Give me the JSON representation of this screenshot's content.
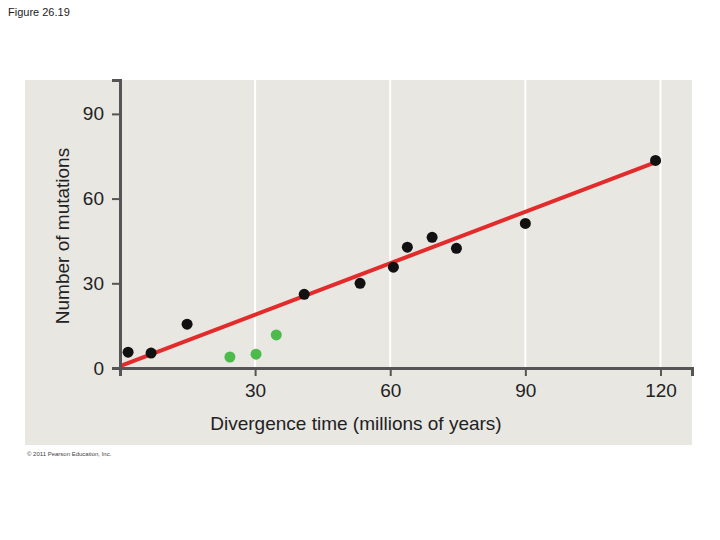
{
  "chart_data": {
    "type": "scatter",
    "title": "Figure 26.19",
    "x_label": "Divergence time (millions of years)",
    "y_label": "Number of mutations",
    "annotations": [
      "© 2011 Pearson Education, Inc."
    ],
    "xlim": [
      0,
      127
    ],
    "ylim": [
      0,
      102
    ],
    "xticks": [
      30,
      60,
      90,
      120
    ],
    "yticks": [
      0,
      30,
      60,
      90
    ],
    "grid": "x",
    "series": [
      {
        "type": "scatter",
        "color": "#111111",
        "marker": "circle",
        "x": [
          1.8,
          6.9,
          14.9,
          40.9,
          53.3,
          60.7,
          63.8,
          69.3,
          74.7,
          90,
          118.9
        ],
        "values": [
          5.6,
          5.3,
          15.5,
          26.1,
          30,
          35.7,
          42.8,
          46.3,
          42.4,
          51.2,
          73.5
        ]
      },
      {
        "type": "scatter",
        "color": "#4cbb4c",
        "marker": "circle",
        "x": [
          24.4,
          30.2,
          34.7
        ],
        "values": [
          3.9,
          4.9,
          11.7
        ]
      },
      {
        "type": "line",
        "color": "#e32b2b",
        "line_style": "solid",
        "x": [
          0,
          120
        ],
        "values": [
          0.7,
          73.5
        ]
      }
    ]
  }
}
